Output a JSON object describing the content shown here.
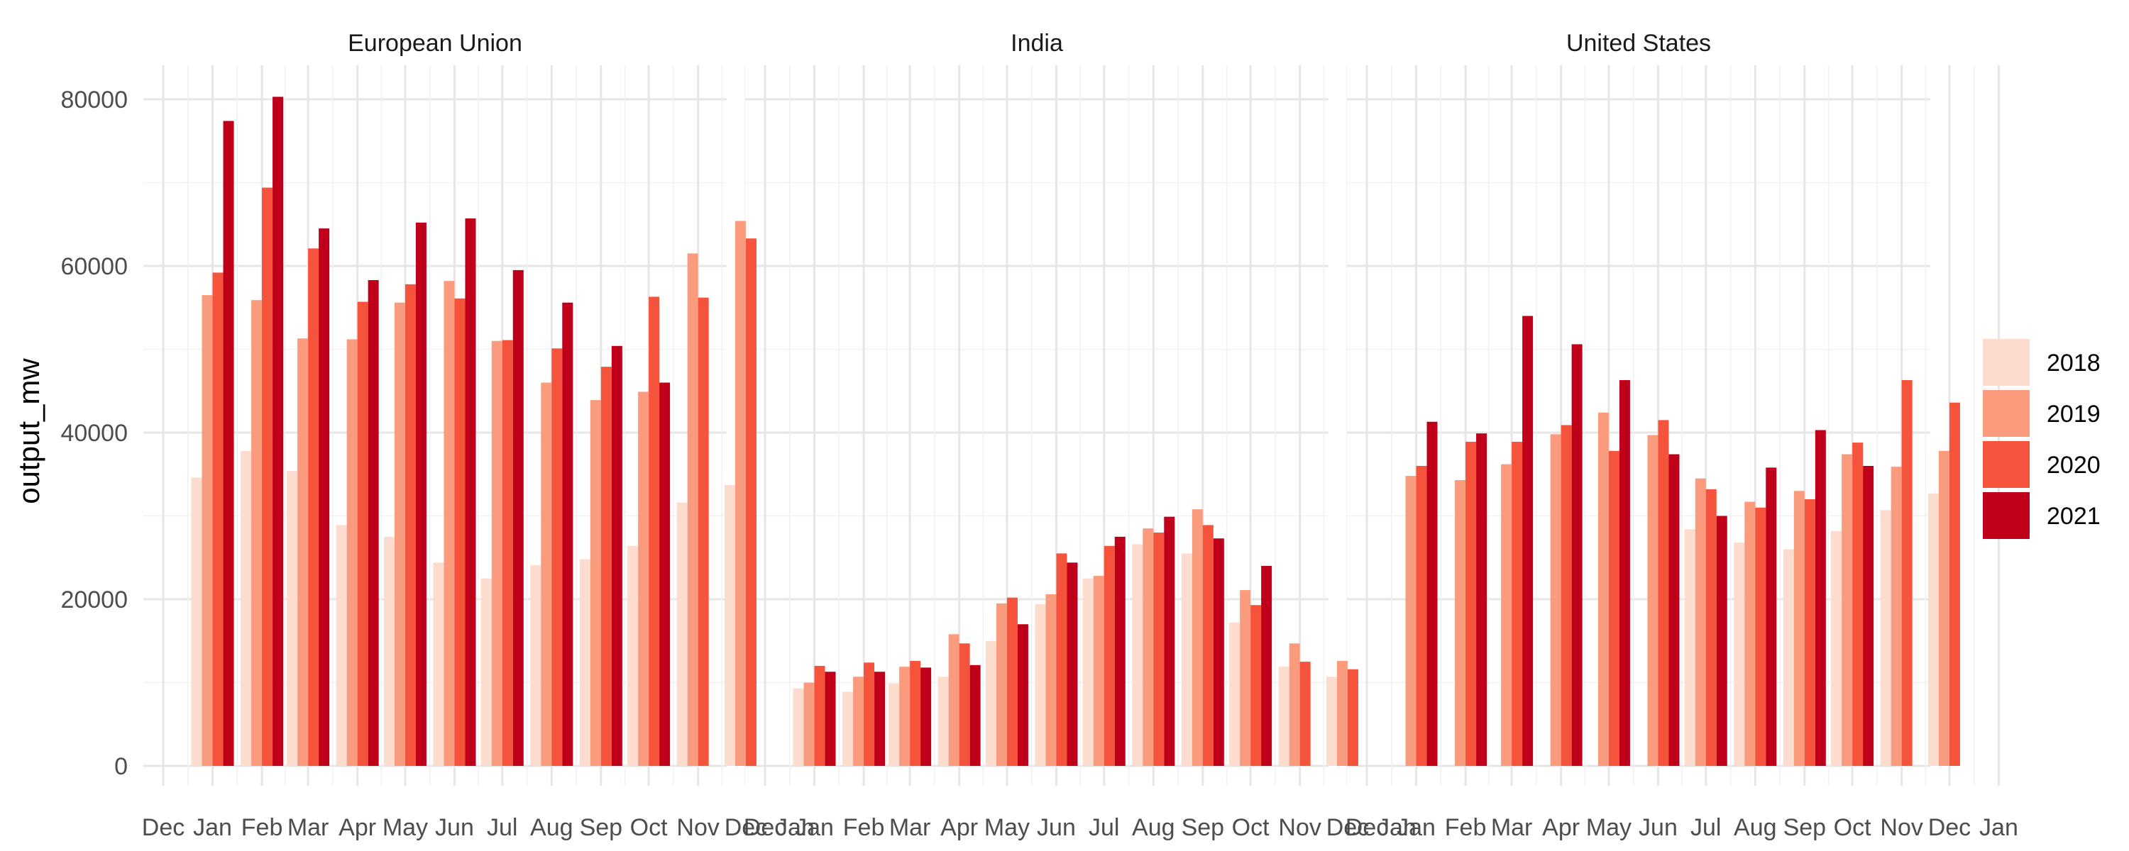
{
  "chart_data": {
    "type": "bar",
    "layout": "faceted by region, dodged bars by year",
    "ylabel": "output_mw",
    "xlabel": "",
    "ylim": [
      0,
      84000
    ],
    "y_ticks": [
      0,
      20000,
      40000,
      60000,
      80000
    ],
    "x_tick_labels": [
      "Dec",
      "Jan",
      "Feb",
      "Mar",
      "Apr",
      "May",
      "Jun",
      "Jul",
      "Aug",
      "Sep",
      "Oct",
      "Nov",
      "Dec",
      "Jan"
    ],
    "categories": [
      "Jan",
      "Feb",
      "Mar",
      "Apr",
      "May",
      "Jun",
      "Jul",
      "Aug",
      "Sep",
      "Oct",
      "Nov",
      "Dec"
    ],
    "grid": true,
    "legend_position": "right",
    "legend": [
      "2018",
      "2019",
      "2020",
      "2021"
    ],
    "colors": {
      "2018": "#fcdccf",
      "2019": "#fb9b7d",
      "2020": "#f6533d",
      "2021": "#c0001b"
    },
    "facets": [
      {
        "name": "European Union",
        "series": [
          {
            "name": "2018",
            "values": [
              34600,
              37800,
              35400,
              28900,
              27500,
              24400,
              22500,
              24100,
              24800,
              26400,
              31600,
              33700
            ]
          },
          {
            "name": "2019",
            "values": [
              56500,
              55900,
              51300,
              51200,
              55600,
              58200,
              51000,
              46000,
              43900,
              44900,
              61500,
              65400
            ]
          },
          {
            "name": "2020",
            "values": [
              59200,
              69400,
              62100,
              55700,
              57800,
              56100,
              51100,
              50100,
              47900,
              56300,
              56200,
              63300
            ]
          },
          {
            "name": "2021",
            "values": [
              77400,
              80300,
              64500,
              58300,
              65200,
              65700,
              59500,
              55600,
              50400,
              46000,
              null,
              null
            ]
          }
        ]
      },
      {
        "name": "India",
        "series": [
          {
            "name": "2018",
            "values": [
              9300,
              8900,
              9900,
              10700,
              15000,
              19400,
              22500,
              26600,
              25500,
              17200,
              11900,
              10700
            ]
          },
          {
            "name": "2019",
            "values": [
              10000,
              10700,
              11900,
              15800,
              19500,
              20600,
              22800,
              28500,
              30800,
              21100,
              14700,
              12600
            ]
          },
          {
            "name": "2020",
            "values": [
              12000,
              12400,
              12600,
              14700,
              20200,
              25500,
              26400,
              28000,
              28900,
              19300,
              12500,
              11600
            ]
          },
          {
            "name": "2021",
            "values": [
              11300,
              11300,
              11800,
              12100,
              17000,
              24400,
              27500,
              29900,
              27300,
              24000,
              null,
              null
            ]
          }
        ]
      },
      {
        "name": "United States",
        "series": [
          {
            "name": "2018",
            "values": [
              null,
              null,
              null,
              null,
              null,
              null,
              28400,
              26800,
              26000,
              28200,
              30700,
              32700
            ]
          },
          {
            "name": "2019",
            "values": [
              34800,
              34300,
              36200,
              39800,
              42400,
              39700,
              34500,
              31700,
              33000,
              37400,
              35900,
              37800
            ]
          },
          {
            "name": "2020",
            "values": [
              36000,
              38900,
              38900,
              40900,
              37800,
              41500,
              33200,
              31000,
              32000,
              38800,
              46300,
              43600
            ]
          },
          {
            "name": "2021",
            "values": [
              41300,
              39900,
              54000,
              50600,
              46300,
              37400,
              30000,
              35800,
              40300,
              36000,
              null,
              null
            ]
          }
        ]
      }
    ]
  }
}
